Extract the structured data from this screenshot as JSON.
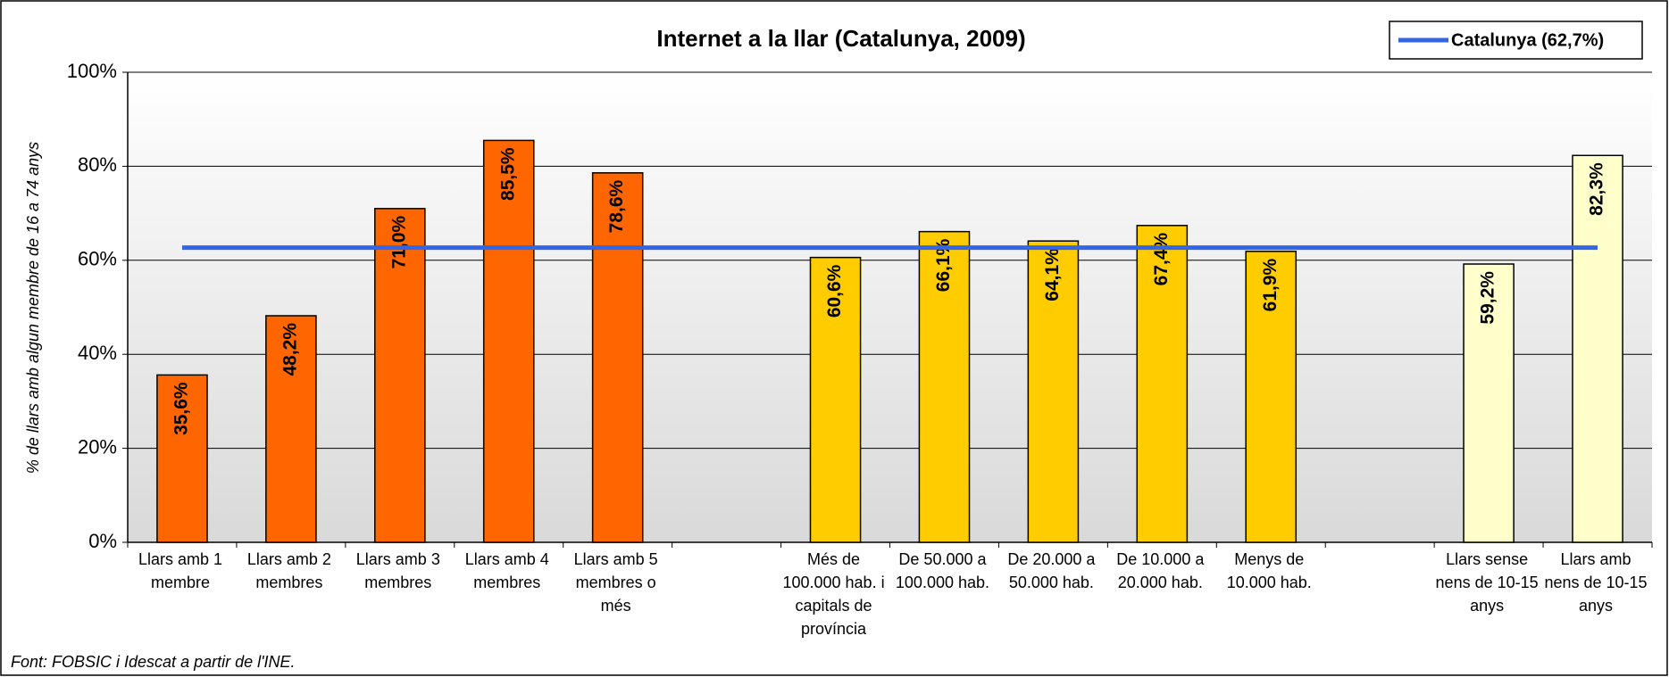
{
  "chart_data": {
    "type": "bar",
    "title": "Internet a la llar (Catalunya, 2009)",
    "y_label": "% de llars amb algun membre de 16 a 74 anys",
    "source": "Font: FOBSIC i Idescat a partir de l'INE.",
    "categories": [
      "Llars amb 1 membre",
      "Llars amb 2 membres",
      "Llars amb 3 membres",
      "Llars amb 4 membres",
      "Llars amb 5 membres o més",
      null,
      "Més de 100.000 hab. i capitals de província",
      "De 50.000 a 100.000 hab.",
      "De 20.000 a 50.000 hab.",
      "De 10.000 a 20.000 hab.",
      "Menys de 10.000 hab.",
      null,
      "Llars sense nens de 10-15 anys",
      "Llars amb nens de 10-15 anys"
    ],
    "values": [
      35.6,
      48.2,
      71.0,
      85.5,
      78.6,
      null,
      60.6,
      66.1,
      64.1,
      67.4,
      61.9,
      null,
      59.2,
      82.3
    ],
    "value_labels": [
      "35,6%",
      "48,2%",
      "71,0%",
      "85,5%",
      "78,6%",
      null,
      "60,6%",
      "66,1%",
      "64,1%",
      "67,4%",
      "61,9%",
      null,
      "59,2%",
      "82,3%"
    ],
    "colors": [
      "#ff6600",
      "#ff6600",
      "#ff6600",
      "#ff6600",
      "#ff6600",
      null,
      "#ffcc00",
      "#ffcc00",
      "#ffcc00",
      "#ffcc00",
      "#ffcc00",
      null,
      "#ffffcc",
      "#ffffcc"
    ],
    "reference_line": {
      "name": "Catalunya (62,7%)",
      "value": 62.7,
      "color": "#3366e6"
    },
    "ylim": [
      0,
      100
    ],
    "yticks": [
      {
        "value": 0,
        "label": "0%"
      },
      {
        "value": 20,
        "label": "20%"
      },
      {
        "value": 40,
        "label": "40%"
      },
      {
        "value": 60,
        "label": "60%"
      },
      {
        "value": 80,
        "label": "80%"
      },
      {
        "value": 100,
        "label": "100%"
      }
    ],
    "grid": true,
    "legend": "top-right"
  }
}
